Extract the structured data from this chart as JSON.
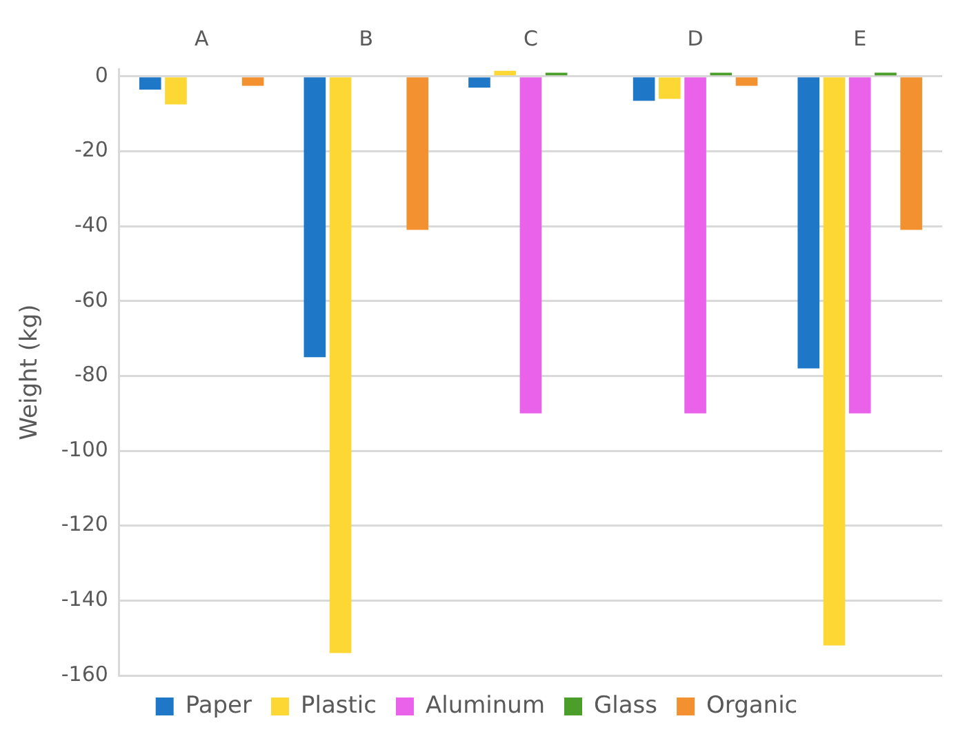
{
  "chart_data": {
    "type": "bar",
    "ylabel": "Weight (kg)",
    "categories": [
      "A",
      "B",
      "C",
      "D",
      "E"
    ],
    "series": [
      {
        "name": "Paper",
        "color": "#1f77c8",
        "values": [
          -3.5,
          -75,
          -3,
          -6.5,
          -78
        ]
      },
      {
        "name": "Plastic",
        "color": "#fdd835",
        "values": [
          -7.5,
          -154,
          1.5,
          -6,
          -152
        ]
      },
      {
        "name": "Aluminum",
        "color": "#ea62ea",
        "values": [
          0,
          0,
          -90,
          -90,
          -90
        ]
      },
      {
        "name": "Glass",
        "color": "#4b9e2a",
        "values": [
          0,
          0,
          1,
          1,
          1
        ]
      },
      {
        "name": "Organic",
        "color": "#f39130",
        "values": [
          -2.5,
          -41,
          0,
          -2.5,
          -41
        ]
      }
    ],
    "ylim": [
      -160,
      2
    ],
    "yticks": [
      0,
      -20,
      -40,
      -60,
      -80,
      -100,
      -120,
      -140,
      -160
    ],
    "grid": "y",
    "legend": "bottom"
  }
}
